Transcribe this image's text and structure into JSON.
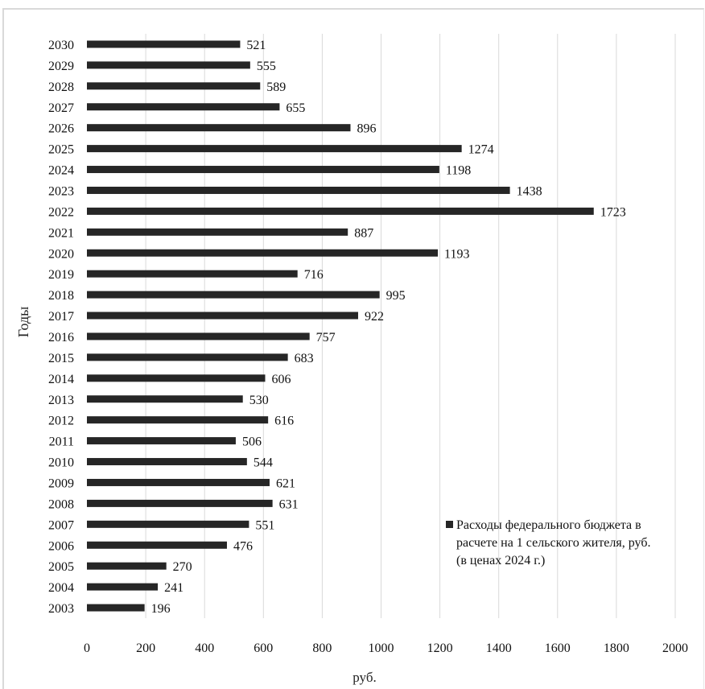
{
  "chart_data": {
    "type": "bar",
    "orientation": "horizontal",
    "categories": [
      "2030",
      "2029",
      "2028",
      "2027",
      "2026",
      "2025",
      "2024",
      "2023",
      "2022",
      "2021",
      "2020",
      "2019",
      "2018",
      "2017",
      "2016",
      "2015",
      "2014",
      "2013",
      "2012",
      "2011",
      "2010",
      "2009",
      "2008",
      "2007",
      "2006",
      "2005",
      "2004",
      "2003"
    ],
    "series": [
      {
        "name": "Расходы федерального бюджета в расчете на 1 сельского жителя, руб. (в ценах 2024 г.)",
        "values": [
          521,
          555,
          589,
          655,
          896,
          1274,
          1198,
          1438,
          1723,
          887,
          1193,
          716,
          995,
          922,
          757,
          683,
          606,
          530,
          616,
          506,
          544,
          621,
          631,
          551,
          476,
          270,
          241,
          196
        ]
      }
    ],
    "xlabel": "руб.",
    "ylabel": "Годы",
    "xlim": [
      0,
      2000
    ],
    "xticks": [
      0,
      200,
      400,
      600,
      800,
      1000,
      1200,
      1400,
      1600,
      1800,
      2000
    ],
    "grid": "vertical",
    "legend_position": "bottom-right",
    "legend_lines": [
      "Расходы федерального бюджета в",
      "расчете на 1 сельского жителя, руб.",
      "(в ценах 2024 г.)"
    ],
    "colors": {
      "bar": "#262626",
      "grid": "#d9d9d9",
      "text": "#111111"
    }
  }
}
